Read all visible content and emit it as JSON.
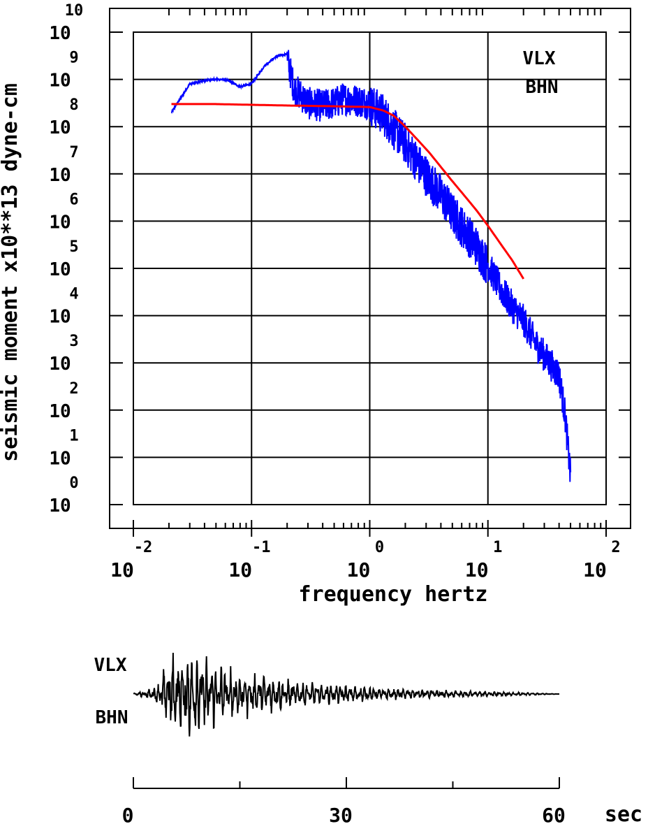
{
  "chart_data": [
    {
      "type": "line",
      "xscale": "log",
      "yscale": "log",
      "xlabel": "frequency hertz",
      "ylabel": "seismic moment x10**13 dyne-cm",
      "xlim": [
        0.01,
        100
      ],
      "ylim": [
        1,
        10000000000
      ],
      "x_ticks": [
        0.01,
        0.1,
        1,
        10,
        100
      ],
      "x_tick_base": "10",
      "x_tick_exponents": [
        "-2",
        "-1",
        "0",
        "1",
        "2"
      ],
      "y_ticks": [
        1,
        10,
        100,
        1000,
        10000,
        100000,
        1000000,
        10000000,
        100000000,
        1000000000,
        10000000000
      ],
      "y_tick_base": "10",
      "y_tick_exponents": [
        "0",
        "1",
        "2",
        "3",
        "4",
        "5",
        "6",
        "7",
        "8",
        "9",
        "10"
      ],
      "grid": true,
      "annotations": [
        "VLX",
        "BHN"
      ],
      "series": [
        {
          "color": "#0000ff",
          "style": "noisy",
          "x": [
            0.021,
            0.03,
            0.045,
            0.06,
            0.08,
            0.1,
            0.13,
            0.16,
            0.2,
            0.23,
            0.26,
            0.3,
            0.4,
            0.5,
            0.6,
            0.8,
            1.0,
            1.3,
            1.6,
            2.0,
            2.5,
            3.2,
            4.0,
            5.0,
            6.3,
            8.0,
            10.0,
            12.6,
            16.0,
            20.0,
            25.0,
            31.6,
            40.0,
            45.0,
            50.0
          ],
          "y": [
            200000000,
            800000000,
            1000000000,
            1000000000,
            700000000,
            800000000,
            2000000000,
            3000000000,
            3500000000,
            800000000,
            600000000,
            400000000,
            350000000,
            400000000,
            500000000,
            450000000,
            400000000,
            250000000,
            120000000,
            60000000,
            25000000,
            10000000,
            5000000,
            2000000,
            900000,
            400000,
            150000,
            50000,
            20000,
            10000,
            3500,
            1500,
            700,
            100,
            5
          ]
        },
        {
          "color": "#ff0000",
          "style": "smooth",
          "x": [
            0.021,
            0.05,
            0.1,
            0.2,
            0.5,
            1.0,
            1.3,
            1.6,
            2.0,
            2.5,
            3.2,
            4.0,
            5.0,
            6.3,
            8.0,
            10.0,
            12.6,
            16.0,
            20.0
          ],
          "y": [
            300000000,
            300000000,
            290000000,
            280000000,
            270000000,
            260000000,
            220000000,
            170000000,
            100000000,
            55000000,
            28000000,
            14000000,
            7000000,
            3500000,
            1700000,
            800000,
            350000,
            150000,
            60000
          ]
        }
      ]
    },
    {
      "type": "line",
      "xlim": [
        0,
        60
      ],
      "x_ticks": [
        0,
        30,
        60
      ],
      "x_tick_labels": [
        "0",
        "30",
        "60"
      ],
      "xunit": "sec",
      "annotations": [
        "VLX",
        "BHN"
      ],
      "series": [
        {
          "color": "#000000",
          "style": "waveform",
          "t_start": 0,
          "t_end": 60,
          "envelope": {
            "t": [
              0,
              2,
              3.5,
              5,
              8.5,
              12,
              16,
              20,
              25,
              30,
              36,
              45,
              56,
              60
            ],
            "amp": [
              0.3,
              1,
              3,
              10,
              12,
              8,
              6,
              4.5,
              3,
              2.3,
              1.6,
              0.9,
              0.3,
              0
            ]
          }
        }
      ]
    }
  ]
}
